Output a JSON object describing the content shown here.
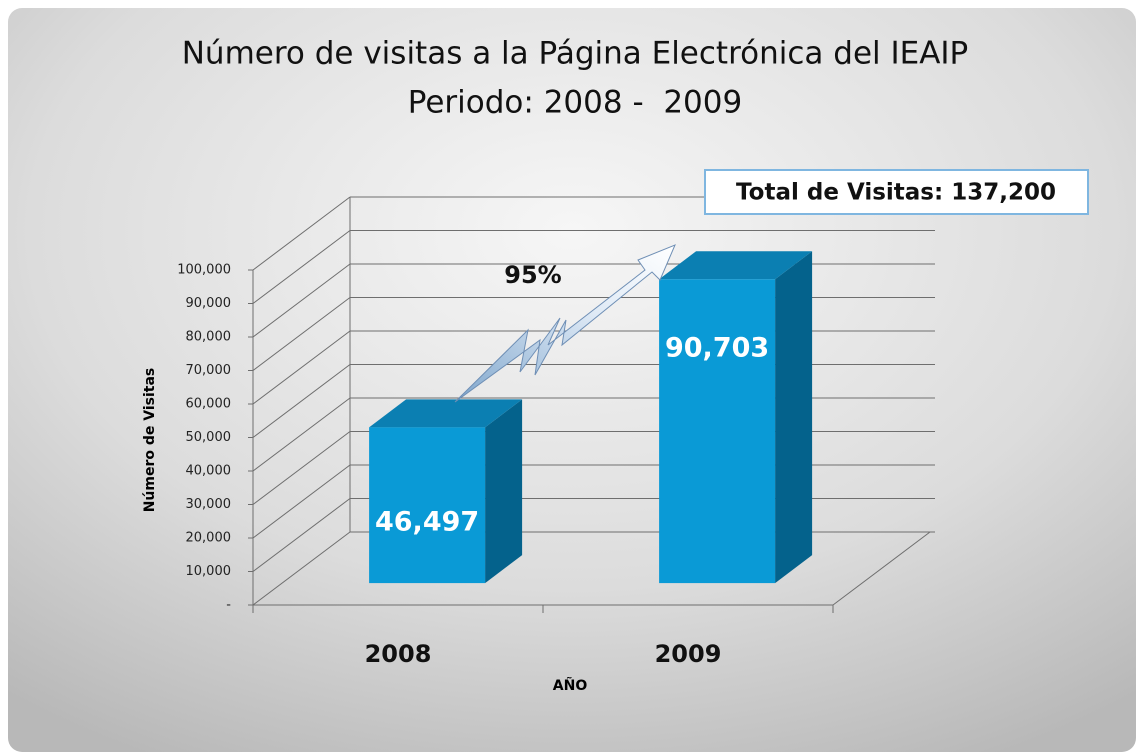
{
  "chart_data": {
    "type": "bar3d",
    "title": "Número de visitas a la Página Electrónica del IEAIP",
    "subtitle": "Periodo: 2008 -  2009",
    "annotations": [
      "Total de Visitas: 137,200",
      "95%"
    ],
    "x_label": "AÑO",
    "y_label": "Número de Visitas",
    "categories": [
      "2008",
      "2009"
    ],
    "values": [
      46497,
      90703
    ],
    "value_labels": [
      "46,497",
      "90,703"
    ],
    "color": "#0a9ad6",
    "ylim": [
      0,
      100000
    ],
    "yticks": [
      {
        "value": 0,
        "label": "-"
      },
      {
        "value": 10000,
        "label": "10,000"
      },
      {
        "value": 20000,
        "label": "20,000"
      },
      {
        "value": 30000,
        "label": "30,000"
      },
      {
        "value": 40000,
        "label": "40,000"
      },
      {
        "value": 50000,
        "label": "50,000"
      },
      {
        "value": 60000,
        "label": "60,000"
      },
      {
        "value": 70000,
        "label": "70,000"
      },
      {
        "value": 80000,
        "label": "80,000"
      },
      {
        "value": 90000,
        "label": "90,000"
      },
      {
        "value": 100000,
        "label": "100,000"
      }
    ],
    "grid": true
  }
}
